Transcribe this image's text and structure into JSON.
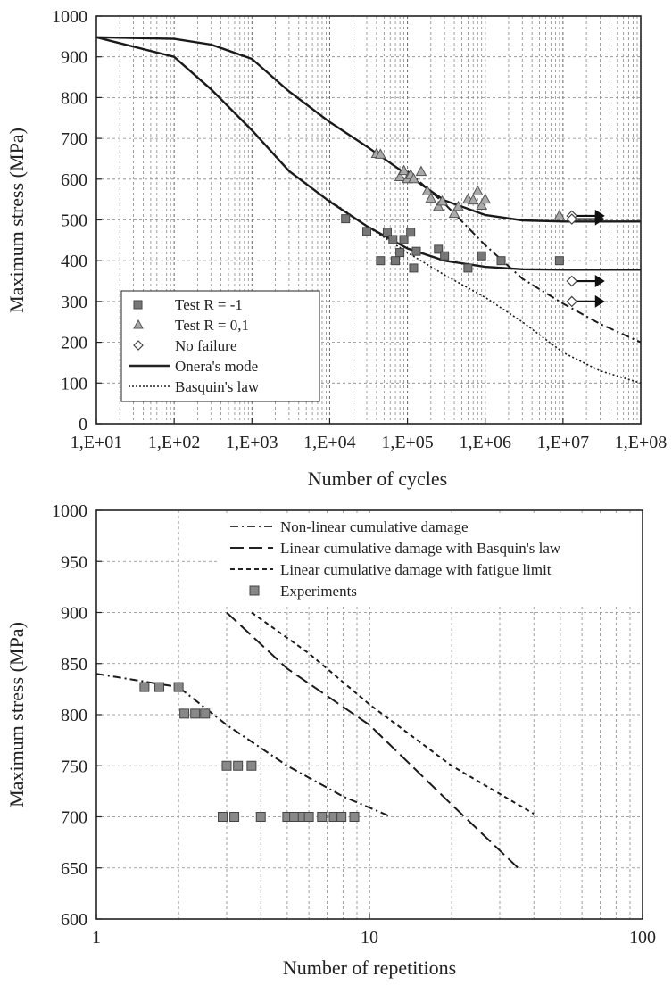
{
  "chart_data": [
    {
      "type": "scatter",
      "xscale": "log",
      "xlim": [
        10,
        100000000
      ],
      "ylim": [
        0,
        1000
      ],
      "xlabel": "Number of cycles",
      "ylabel": "Maximum stress (MPa)",
      "xticks": [
        10,
        100,
        1000,
        10000,
        100000,
        1000000,
        10000000,
        100000000
      ],
      "xtick_labels": [
        "1,E+01",
        "1,E+02",
        "1,E+03",
        "1,E+04",
        "1,E+05",
        "1,E+06",
        "1,E+07",
        "1,E+08"
      ],
      "yticks": [
        0,
        100,
        200,
        300,
        400,
        500,
        600,
        700,
        800,
        900,
        1000
      ],
      "grid": true,
      "legend_position": "lower-left",
      "series": [
        {
          "name": "Test  R = -1",
          "marker": "square",
          "points": [
            [
              16000,
              503
            ],
            [
              30000,
              472
            ],
            [
              45000,
              400
            ],
            [
              55000,
              470
            ],
            [
              65000,
              452
            ],
            [
              70000,
              400
            ],
            [
              80000,
              420
            ],
            [
              90000,
              452
            ],
            [
              110000,
              470
            ],
            [
              120000,
              382
            ],
            [
              130000,
              423
            ],
            [
              250000,
              428
            ],
            [
              300000,
              412
            ],
            [
              600000,
              382
            ],
            [
              900000,
              412
            ],
            [
              1600000,
              400
            ],
            [
              9000000,
              400
            ]
          ]
        },
        {
          "name": "Test  R = 0,1",
          "marker": "triangle",
          "points": [
            [
              40000,
              662
            ],
            [
              45000,
              660
            ],
            [
              80000,
              605
            ],
            [
              90000,
              620
            ],
            [
              100000,
              600
            ],
            [
              110000,
              610
            ],
            [
              120000,
              600
            ],
            [
              150000,
              618
            ],
            [
              180000,
              570
            ],
            [
              200000,
              552
            ],
            [
              250000,
              532
            ],
            [
              280000,
              545
            ],
            [
              400000,
              515
            ],
            [
              450000,
              532
            ],
            [
              600000,
              550
            ],
            [
              700000,
              548
            ],
            [
              800000,
              570
            ],
            [
              900000,
              535
            ],
            [
              1000000,
              550
            ],
            [
              9000000,
              510
            ]
          ]
        },
        {
          "name": "No failure",
          "marker": "diamond",
          "points": [
            [
              13000000,
              510
            ],
            [
              13000000,
              502
            ],
            [
              13000000,
              350
            ],
            [
              13000000,
              300
            ]
          ]
        },
        {
          "name": "Onera's mode",
          "style": "solid",
          "curves": [
            [
              [
                10,
                948
              ],
              [
                100,
                944
              ],
              [
                300,
                930
              ],
              [
                1000,
                895
              ],
              [
                3000,
                815
              ],
              [
                10000,
                740
              ],
              [
                30000,
                680
              ],
              [
                100000,
                610
              ],
              [
                300000,
                548
              ],
              [
                1000000,
                512
              ],
              [
                3000000,
                499
              ],
              [
                10000000,
                496
              ],
              [
                100000000,
                496
              ]
            ],
            [
              [
                10,
                948
              ],
              [
                100,
                900
              ],
              [
                300,
                820
              ],
              [
                1000,
                720
              ],
              [
                3000,
                620
              ],
              [
                10000,
                545
              ],
              [
                30000,
                485
              ],
              [
                100000,
                430
              ],
              [
                300000,
                400
              ],
              [
                1000000,
                385
              ],
              [
                3000000,
                379
              ],
              [
                10000000,
                378
              ],
              [
                100000000,
                378
              ]
            ]
          ]
        },
        {
          "name": "Basquin's law",
          "style": "dotted",
          "points": [
            [
              10000,
              548
            ],
            [
              30000,
              485
            ],
            [
              100000,
              420
            ],
            [
              300000,
              365
            ],
            [
              1000000,
              310
            ],
            [
              3000000,
              250
            ],
            [
              10000000,
              175
            ],
            [
              30000000,
              130
            ],
            [
              100000000,
              100
            ]
          ]
        },
        {
          "name": "",
          "style": "dash-dot",
          "points": [
            [
              100000,
              620
            ],
            [
              300000,
              540
            ],
            [
              1000000,
              438
            ],
            [
              3000000,
              356
            ],
            [
              10000000,
              295
            ],
            [
              30000000,
              245
            ],
            [
              100000000,
              200
            ]
          ]
        }
      ]
    },
    {
      "type": "scatter",
      "xscale": "log",
      "xlim": [
        1,
        100
      ],
      "ylim": [
        600,
        1000
      ],
      "xlabel": "Number of repetitions",
      "ylabel": "Maximum stress (MPa)",
      "xticks": [
        1,
        10,
        100
      ],
      "xtick_labels": [
        "1",
        "10",
        "100"
      ],
      "yticks": [
        600,
        650,
        700,
        750,
        800,
        850,
        900,
        950,
        1000
      ],
      "grid": true,
      "legend_position": "top-right",
      "series": [
        {
          "name": "Non-linear cumulative damage",
          "style": "dash-dot",
          "points": [
            [
              1,
              840
            ],
            [
              2,
              827
            ],
            [
              3,
              790
            ],
            [
              5,
              750
            ],
            [
              8,
              720
            ],
            [
              12,
              700
            ]
          ]
        },
        {
          "name": "Linear cumulative damage with Basquin's law",
          "style": "long-dash",
          "points": [
            [
              3,
              900
            ],
            [
              5,
              845
            ],
            [
              10,
              790
            ],
            [
              20,
              712
            ],
            [
              35,
              650
            ]
          ]
        },
        {
          "name": "Linear cumulative damage with fatigue limit",
          "style": "short-dash",
          "points": [
            [
              3.7,
              900
            ],
            [
              6,
              860
            ],
            [
              10,
              810
            ],
            [
              20,
              750
            ],
            [
              40,
              703
            ]
          ]
        },
        {
          "name": "Experiments",
          "marker": "square",
          "points": [
            [
              1.5,
              827
            ],
            [
              1.7,
              827
            ],
            [
              2,
              827
            ],
            [
              2.1,
              801
            ],
            [
              2.3,
              801
            ],
            [
              2.5,
              801
            ],
            [
              3,
              750
            ],
            [
              3.3,
              750
            ],
            [
              3.7,
              750
            ],
            [
              2.9,
              700
            ],
            [
              3.2,
              700
            ],
            [
              4,
              700
            ],
            [
              5,
              700
            ],
            [
              5.3,
              700
            ],
            [
              5.7,
              700
            ],
            [
              6,
              700
            ],
            [
              6.7,
              700
            ],
            [
              7.4,
              700
            ],
            [
              7.9,
              700
            ],
            [
              8.8,
              700
            ]
          ]
        }
      ]
    }
  ],
  "legend_top": [
    "Test  R = -1",
    "Test  R = 0,1",
    "No failure",
    "Onera's mode",
    "Basquin's law"
  ],
  "legend_bottom": [
    "Non-linear cumulative damage",
    "Linear cumulative damage with Basquin's law",
    "Linear cumulative damage with fatigue limit",
    "Experiments"
  ]
}
